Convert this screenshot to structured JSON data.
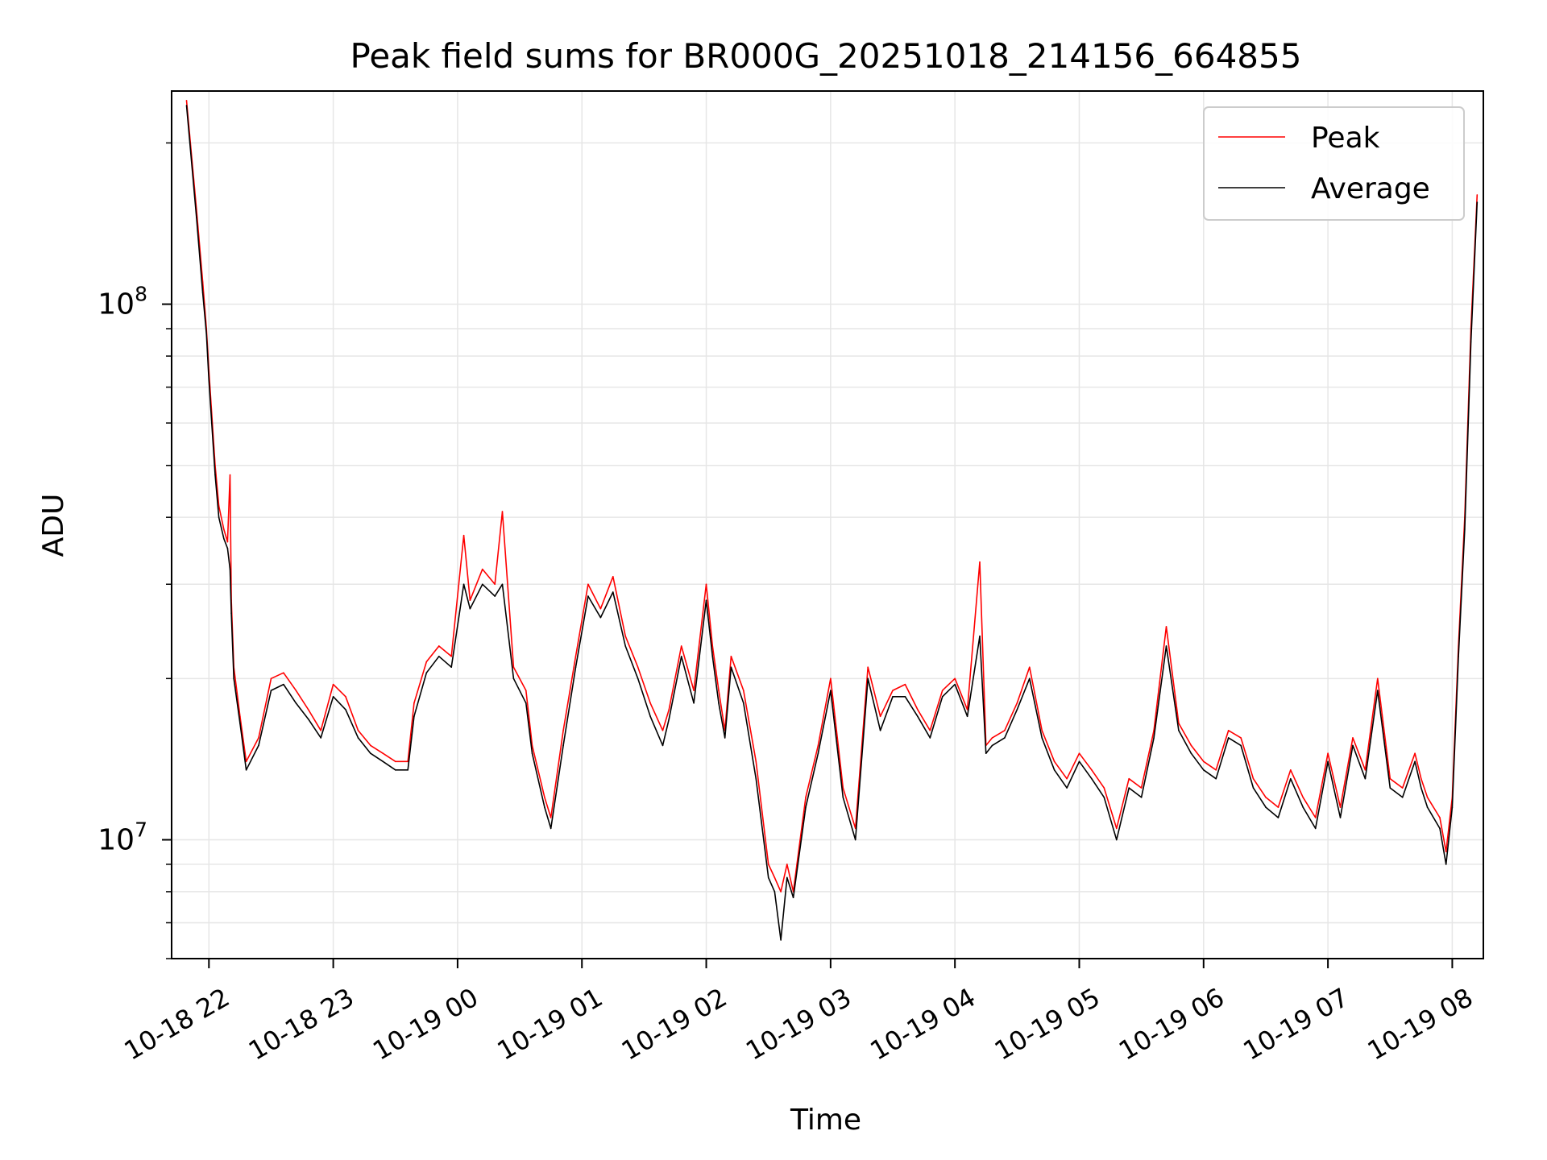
{
  "chart_data": {
    "type": "line",
    "title": "Peak field sums for BR000G_20251018_214156_664855",
    "xlabel": "Time",
    "ylabel": "ADU",
    "yscale": "log",
    "ylim": [
      6000000,
      250000000
    ],
    "xlim": [
      -0.3,
      10.25
    ],
    "grid": true,
    "legend_position": "upper right",
    "x_ticks": [
      0,
      1,
      2,
      3,
      4,
      5,
      6,
      7,
      8,
      9,
      10
    ],
    "x_tick_labels": [
      "10-18 22",
      "10-18 23",
      "10-19 00",
      "10-19 01",
      "10-19 02",
      "10-19 03",
      "10-19 04",
      "10-19 05",
      "10-19 06",
      "10-19 07",
      "10-19 08"
    ],
    "y_major_ticks": [
      {
        "value": 10000000,
        "base": "10",
        "exp": "7"
      },
      {
        "value": 100000000,
        "base": "10",
        "exp": "8"
      }
    ],
    "x_units": "hours after 10-18 22:00",
    "series": [
      {
        "name": "Peak",
        "color": "#ff0000",
        "x": [
          -0.18,
          -0.1,
          -0.05,
          -0.02,
          0.0,
          0.05,
          0.08,
          0.12,
          0.15,
          0.17,
          0.18,
          0.2,
          0.25,
          0.3,
          0.4,
          0.5,
          0.6,
          0.7,
          0.8,
          0.9,
          1.0,
          1.1,
          1.2,
          1.3,
          1.4,
          1.5,
          1.6,
          1.65,
          1.75,
          1.85,
          1.95,
          2.05,
          2.1,
          2.2,
          2.3,
          2.36,
          2.45,
          2.55,
          2.6,
          2.7,
          2.75,
          2.85,
          2.95,
          3.05,
          3.15,
          3.25,
          3.35,
          3.45,
          3.55,
          3.65,
          3.7,
          3.8,
          3.9,
          4.0,
          4.05,
          4.1,
          4.15,
          4.2,
          4.3,
          4.4,
          4.5,
          4.55,
          4.6,
          4.65,
          4.7,
          4.8,
          4.9,
          5.0,
          5.1,
          5.2,
          5.3,
          5.4,
          5.5,
          5.6,
          5.7,
          5.8,
          5.9,
          6.0,
          6.1,
          6.2,
          6.25,
          6.3,
          6.4,
          6.5,
          6.6,
          6.7,
          6.8,
          6.9,
          7.0,
          7.1,
          7.2,
          7.3,
          7.4,
          7.5,
          7.6,
          7.7,
          7.8,
          7.9,
          8.0,
          8.1,
          8.2,
          8.3,
          8.4,
          8.5,
          8.6,
          8.7,
          8.8,
          8.9,
          9.0,
          9.1,
          9.2,
          9.3,
          9.4,
          9.5,
          9.6,
          9.7,
          9.75,
          9.8,
          9.9,
          9.95,
          10.0,
          10.05,
          10.1,
          10.15,
          10.2
        ],
        "values": [
          240000000,
          150000000,
          110000000,
          90000000,
          75000000,
          50000000,
          42000000,
          38000000,
          36000000,
          48000000,
          28000000,
          21000000,
          17000000,
          14000000,
          15500000,
          20000000,
          20500000,
          19000000,
          17500000,
          16000000,
          19500000,
          18500000,
          16000000,
          15000000,
          14500000,
          14000000,
          14000000,
          18000000,
          21500000,
          23000000,
          22000000,
          37000000,
          28000000,
          32000000,
          30000000,
          41000000,
          21000000,
          19000000,
          15000000,
          12000000,
          11000000,
          16000000,
          22000000,
          30000000,
          27000000,
          31000000,
          24000000,
          21000000,
          18000000,
          16000000,
          17500000,
          23000000,
          19000000,
          30000000,
          23000000,
          19000000,
          16000000,
          22000000,
          19000000,
          14000000,
          9000000,
          8500000,
          8000000,
          9000000,
          8000000,
          12000000,
          15000000,
          20000000,
          12500000,
          10500000,
          21000000,
          17000000,
          19000000,
          19500000,
          17500000,
          16000000,
          19000000,
          20000000,
          17500000,
          33000000,
          15000000,
          15500000,
          16000000,
          18000000,
          21000000,
          16000000,
          14000000,
          13000000,
          14500000,
          13500000,
          12500000,
          10500000,
          13000000,
          12500000,
          16000000,
          25000000,
          16500000,
          15000000,
          14000000,
          13500000,
          16000000,
          15500000,
          13000000,
          12000000,
          11500000,
          13500000,
          12000000,
          11000000,
          14500000,
          11500000,
          15500000,
          13500000,
          20000000,
          13000000,
          12500000,
          14500000,
          13000000,
          12000000,
          11000000,
          9500000,
          12000000,
          23000000,
          40000000,
          90000000,
          160000000
        ]
      },
      {
        "name": "Average",
        "color": "#000000",
        "x": [
          -0.18,
          -0.1,
          -0.05,
          -0.02,
          0.0,
          0.05,
          0.08,
          0.12,
          0.15,
          0.17,
          0.18,
          0.2,
          0.25,
          0.3,
          0.4,
          0.5,
          0.6,
          0.7,
          0.8,
          0.9,
          1.0,
          1.1,
          1.2,
          1.3,
          1.4,
          1.5,
          1.6,
          1.65,
          1.75,
          1.85,
          1.95,
          2.05,
          2.1,
          2.2,
          2.3,
          2.36,
          2.45,
          2.55,
          2.6,
          2.7,
          2.75,
          2.85,
          2.95,
          3.05,
          3.15,
          3.25,
          3.35,
          3.45,
          3.55,
          3.65,
          3.7,
          3.8,
          3.9,
          4.0,
          4.05,
          4.1,
          4.15,
          4.2,
          4.3,
          4.4,
          4.5,
          4.55,
          4.6,
          4.65,
          4.7,
          4.8,
          4.9,
          5.0,
          5.1,
          5.2,
          5.3,
          5.4,
          5.5,
          5.6,
          5.7,
          5.8,
          5.9,
          6.0,
          6.1,
          6.2,
          6.25,
          6.3,
          6.4,
          6.5,
          6.6,
          6.7,
          6.8,
          6.9,
          7.0,
          7.1,
          7.2,
          7.3,
          7.4,
          7.5,
          7.6,
          7.7,
          7.8,
          7.9,
          8.0,
          8.1,
          8.2,
          8.3,
          8.4,
          8.5,
          8.6,
          8.7,
          8.8,
          8.9,
          9.0,
          9.1,
          9.2,
          9.3,
          9.4,
          9.5,
          9.6,
          9.7,
          9.75,
          9.8,
          9.9,
          9.95,
          10.0,
          10.05,
          10.1,
          10.15,
          10.2
        ],
        "values": [
          235000000,
          145000000,
          105000000,
          88000000,
          72000000,
          48000000,
          40000000,
          36500000,
          35000000,
          32000000,
          26500000,
          20000000,
          16500000,
          13500000,
          15000000,
          19000000,
          19500000,
          18000000,
          16800000,
          15500000,
          18500000,
          17500000,
          15500000,
          14500000,
          14000000,
          13500000,
          13500000,
          17000000,
          20500000,
          22000000,
          21000000,
          30000000,
          27000000,
          30000000,
          28500000,
          30000000,
          20000000,
          18000000,
          14500000,
          11500000,
          10500000,
          15000000,
          21000000,
          28500000,
          26000000,
          29000000,
          23000000,
          20000000,
          17000000,
          15000000,
          16800000,
          22000000,
          18000000,
          28000000,
          22000000,
          18000000,
          15500000,
          21000000,
          18000000,
          13000000,
          8500000,
          8000000,
          6500000,
          8500000,
          7800000,
          11500000,
          14500000,
          19000000,
          12000000,
          10000000,
          20000000,
          16000000,
          18500000,
          18500000,
          17000000,
          15500000,
          18500000,
          19500000,
          17000000,
          24000000,
          14500000,
          15000000,
          15500000,
          17500000,
          20000000,
          15500000,
          13500000,
          12500000,
          14000000,
          13000000,
          12000000,
          10000000,
          12500000,
          12000000,
          15500000,
          23000000,
          16000000,
          14500000,
          13500000,
          13000000,
          15500000,
          15000000,
          12500000,
          11500000,
          11000000,
          13000000,
          11500000,
          10500000,
          14000000,
          11000000,
          15000000,
          13000000,
          19000000,
          12500000,
          12000000,
          14000000,
          12500000,
          11500000,
          10500000,
          9000000,
          11500000,
          22000000,
          38000000,
          85000000,
          155000000
        ]
      }
    ]
  }
}
